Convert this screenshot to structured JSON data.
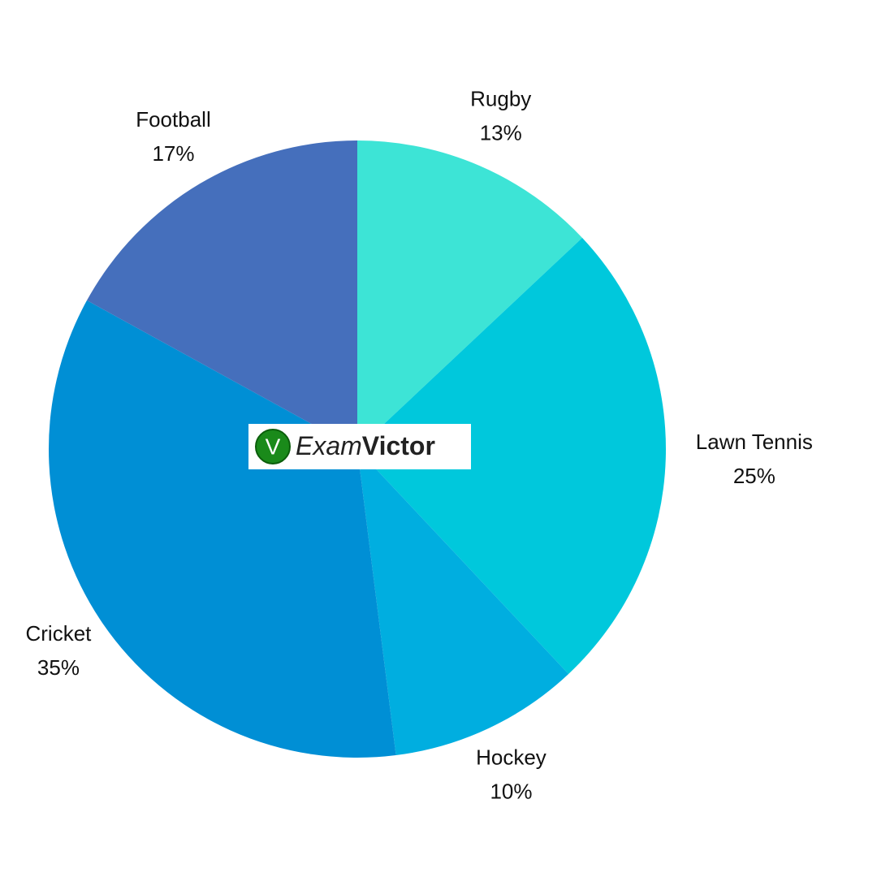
{
  "chart_data": {
    "type": "pie",
    "categories": [
      "Rugby",
      "Lawn Tennis",
      "Hockey",
      "Cricket",
      "Football"
    ],
    "values": [
      13,
      25,
      10,
      35,
      17
    ],
    "value_labels": [
      "13%",
      "25%",
      "10%",
      "35%",
      "17%"
    ],
    "colors": [
      "#3de4d6",
      "#00c8dc",
      "#00aee0",
      "#008fd5",
      "#456fbc"
    ],
    "logo": {
      "icon": "V",
      "parts": [
        "Exam",
        "Victor"
      ]
    }
  }
}
